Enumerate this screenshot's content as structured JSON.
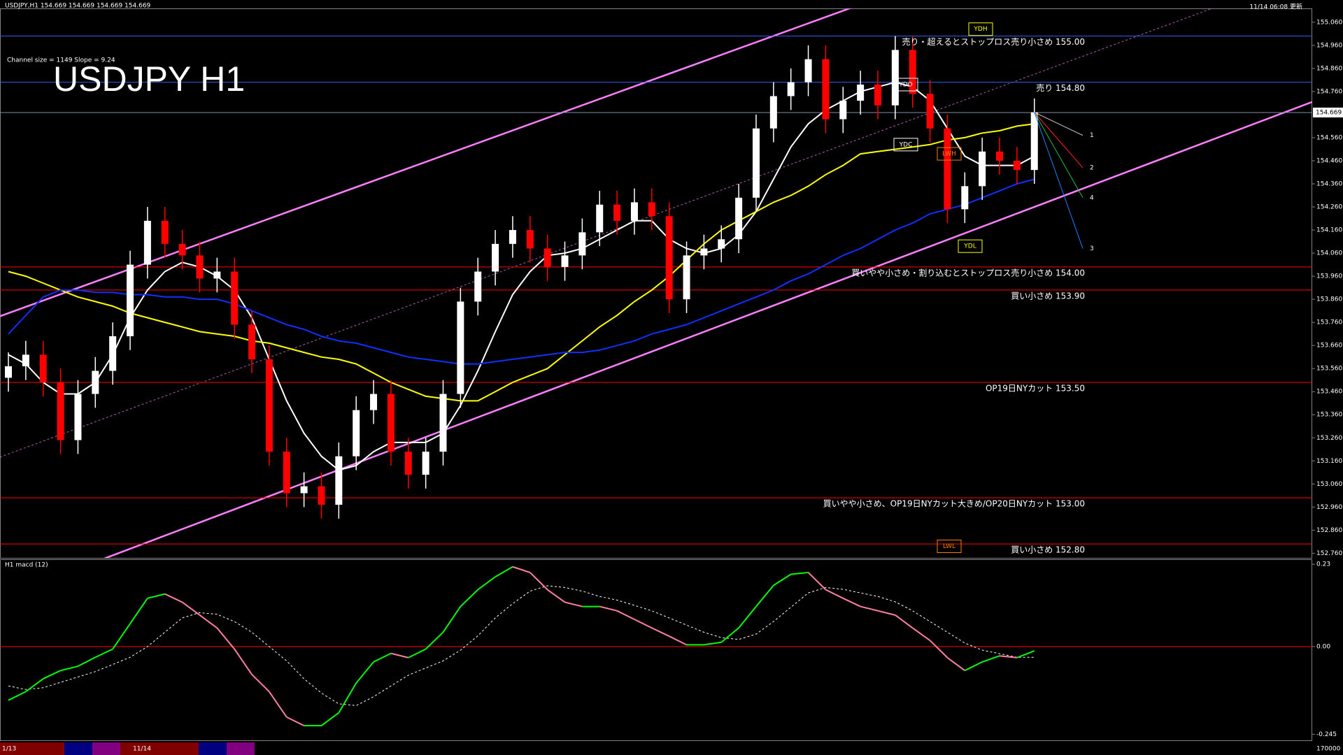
{
  "header": "USDJPY,H1  154.669 154.669 154.669 154.669",
  "updated": "11/14 06:08 更新",
  "chart_data": [
    {
      "type": "candlestick",
      "title": "USDJPY H1",
      "subtitle": "Channel size = 1149 Slope = 9.24",
      "open": [
        153.52,
        153.57,
        153.62,
        153.5,
        153.25,
        153.45,
        153.55,
        153.7,
        154.01,
        154.2,
        154.1,
        154.05,
        153.95,
        153.98,
        153.75,
        153.6,
        153.2,
        153.02,
        153.05,
        152.97,
        153.18,
        153.38,
        153.45,
        153.2,
        153.1,
        153.2,
        153.45,
        153.85,
        153.98,
        154.1,
        154.16,
        154.08,
        154.0,
        154.05,
        154.15,
        154.27,
        154.2,
        154.28,
        154.22,
        153.86,
        154.05,
        154.08,
        154.12,
        154.3,
        154.6,
        154.74,
        154.8,
        154.9,
        154.64,
        154.72,
        154.79,
        154.7,
        154.94,
        154.75,
        154.6,
        154.25,
        154.35,
        154.5,
        154.46,
        154.42
      ],
      "high": [
        153.63,
        153.68,
        153.68,
        153.56,
        153.51,
        153.61,
        153.76,
        154.07,
        154.26,
        154.26,
        154.16,
        154.11,
        154.04,
        154.04,
        153.81,
        153.66,
        153.26,
        153.11,
        153.11,
        153.24,
        153.44,
        153.51,
        153.51,
        153.26,
        153.26,
        153.51,
        153.91,
        154.04,
        154.16,
        154.22,
        154.22,
        154.14,
        154.11,
        154.21,
        154.33,
        154.33,
        154.34,
        154.34,
        154.28,
        154.11,
        154.14,
        154.18,
        154.36,
        154.66,
        154.8,
        154.86,
        154.96,
        154.96,
        154.78,
        154.85,
        154.85,
        155.0,
        155.0,
        154.81,
        154.66,
        154.41,
        154.56,
        154.56,
        154.52,
        154.73
      ],
      "low": [
        153.46,
        153.51,
        153.44,
        153.19,
        153.19,
        153.39,
        153.49,
        153.64,
        153.95,
        154.04,
        153.99,
        153.89,
        153.89,
        153.69,
        153.54,
        153.14,
        152.96,
        152.96,
        152.91,
        152.91,
        153.12,
        153.32,
        153.14,
        153.04,
        153.04,
        153.14,
        153.39,
        153.79,
        153.92,
        154.04,
        154.02,
        153.94,
        153.94,
        153.99,
        154.09,
        154.14,
        154.14,
        154.16,
        153.8,
        153.8,
        153.99,
        154.02,
        154.06,
        154.24,
        154.54,
        154.68,
        154.74,
        154.58,
        154.58,
        154.66,
        154.64,
        154.64,
        154.69,
        154.54,
        154.19,
        154.19,
        154.29,
        154.4,
        154.36,
        154.36
      ],
      "close": [
        153.57,
        153.62,
        153.5,
        153.25,
        153.45,
        153.55,
        153.7,
        154.01,
        154.2,
        154.1,
        154.05,
        153.95,
        153.98,
        153.75,
        153.6,
        153.2,
        153.02,
        153.05,
        152.97,
        153.18,
        153.38,
        153.45,
        153.2,
        153.1,
        153.2,
        153.45,
        153.85,
        153.98,
        154.1,
        154.16,
        154.08,
        154.0,
        154.05,
        154.15,
        154.27,
        154.2,
        154.28,
        154.22,
        153.86,
        154.05,
        154.08,
        154.12,
        154.3,
        154.6,
        154.74,
        154.8,
        154.9,
        154.64,
        154.72,
        154.79,
        154.7,
        154.94,
        154.75,
        154.6,
        154.25,
        154.35,
        154.5,
        154.46,
        154.42,
        154.67
      ],
      "up_color": "#ffffff",
      "down_color": "#ff0000",
      "ylim": [
        152.74,
        155.12
      ],
      "yticks": [
        {
          "value": 152.76,
          "label": "152.760"
        },
        {
          "value": 152.86,
          "label": "152.860"
        },
        {
          "value": 152.96,
          "label": "152.960"
        },
        {
          "value": 153.06,
          "label": "153.060"
        },
        {
          "value": 153.16,
          "label": "153.160"
        },
        {
          "value": 153.26,
          "label": "153.260"
        },
        {
          "value": 153.36,
          "label": "153.360"
        },
        {
          "value": 153.46,
          "label": "153.460"
        },
        {
          "value": 153.56,
          "label": "153.560"
        },
        {
          "value": 153.66,
          "label": "153.660"
        },
        {
          "value": 153.76,
          "label": "153.760"
        },
        {
          "value": 153.86,
          "label": "153.860"
        },
        {
          "value": 153.96,
          "label": "153.960"
        },
        {
          "value": 154.06,
          "label": "154.060"
        },
        {
          "value": 154.16,
          "label": "154.160"
        },
        {
          "value": 154.26,
          "label": "154.260"
        },
        {
          "value": 154.36,
          "label": "154.360"
        },
        {
          "value": 154.46,
          "label": "154.460"
        },
        {
          "value": 154.56,
          "label": "154.560"
        },
        {
          "value": 154.76,
          "label": "154.760"
        },
        {
          "value": 154.86,
          "label": "154.860"
        },
        {
          "value": 154.96,
          "label": "154.960"
        },
        {
          "value": 155.06,
          "label": "155.060"
        }
      ],
      "last_price": {
        "value": 154.669,
        "label": "154.669",
        "color": "#8090b0"
      },
      "moving_averages": [
        {
          "color": "#ffffff",
          "values": [
            153.62,
            153.58,
            153.5,
            153.45,
            153.45,
            153.5,
            153.62,
            153.78,
            153.9,
            153.98,
            154.02,
            154.0,
            153.96,
            153.9,
            153.78,
            153.6,
            153.42,
            153.28,
            153.18,
            153.12,
            153.14,
            153.2,
            153.24,
            153.24,
            153.24,
            153.28,
            153.4,
            153.55,
            153.72,
            153.88,
            153.98,
            154.05,
            154.06,
            154.08,
            154.12,
            154.16,
            154.2,
            154.2,
            154.12,
            154.08,
            154.06,
            154.08,
            154.14,
            154.24,
            154.38,
            154.52,
            154.62,
            154.68,
            154.72,
            154.76,
            154.78,
            154.8,
            154.78,
            154.72,
            154.6,
            154.48,
            154.44,
            154.44,
            154.44,
            154.48
          ]
        },
        {
          "color": "#ffff00",
          "values": [
            153.98,
            153.96,
            153.93,
            153.9,
            153.87,
            153.85,
            153.83,
            153.8,
            153.78,
            153.76,
            153.74,
            153.72,
            153.71,
            153.7,
            153.68,
            153.67,
            153.65,
            153.63,
            153.61,
            153.6,
            153.58,
            153.54,
            153.5,
            153.47,
            153.44,
            153.43,
            153.42,
            153.42,
            153.46,
            153.5,
            153.53,
            153.56,
            153.62,
            153.68,
            153.74,
            153.79,
            153.85,
            153.9,
            153.96,
            154.03,
            154.1,
            154.16,
            154.2,
            154.24,
            154.28,
            154.31,
            154.35,
            154.4,
            154.44,
            154.49,
            154.5,
            154.51,
            154.52,
            154.53,
            154.55,
            154.56,
            154.58,
            154.59,
            154.61,
            154.62
          ]
        },
        {
          "color": "#1030ff",
          "values": [
            153.71,
            153.79,
            153.87,
            153.9,
            153.9,
            153.89,
            153.89,
            153.88,
            153.88,
            153.87,
            153.87,
            153.86,
            153.86,
            153.84,
            153.81,
            153.78,
            153.75,
            153.73,
            153.7,
            153.68,
            153.67,
            153.65,
            153.63,
            153.61,
            153.6,
            153.59,
            153.58,
            153.58,
            153.59,
            153.6,
            153.61,
            153.62,
            153.63,
            153.63,
            153.64,
            153.66,
            153.68,
            153.71,
            153.73,
            153.75,
            153.78,
            153.81,
            153.84,
            153.87,
            153.9,
            153.94,
            153.97,
            154.01,
            154.05,
            154.08,
            154.12,
            154.16,
            154.19,
            154.23,
            154.25,
            154.27,
            154.3,
            154.33,
            154.36,
            154.38
          ]
        }
      ],
      "channel": {
        "color": "#ff80ff",
        "upper": [
          153.8,
          155.41
        ],
        "lower": [
          152.58,
          154.26
        ]
      },
      "levels": [
        {
          "value": 155.0,
          "label": "売り・超えるとストップロス売り小さめ 155.00",
          "color": "#2f5fff"
        },
        {
          "value": 154.8,
          "label": "売り 154.80",
          "color": "#2f5fff"
        },
        {
          "value": 154.0,
          "label": "買いやや小さめ・割り込むとストップロス売り小さめ 154.00",
          "color": "#ff0000"
        },
        {
          "value": 153.9,
          "label": "買い小さめ 153.90",
          "color": "#ff0000"
        },
        {
          "value": 153.5,
          "label": "OP19日NYカット 153.50",
          "color": "#ff0000"
        },
        {
          "value": 153.0,
          "label": "買いやや小さめ、OP19日NYカット大きめ/OP20日NYカット 153.00",
          "color": "#ff0000"
        },
        {
          "value": 152.8,
          "label": "買い小さめ 152.80",
          "color": "#ff0000"
        }
      ],
      "markers": [
        {
          "label": "YDH",
          "value": 155.03,
          "color": "#ffff00"
        },
        {
          "label": "YDO",
          "value": 154.79,
          "color": "#ffffff"
        },
        {
          "label": "YDC",
          "value": 154.53,
          "color": "#ffffff"
        },
        {
          "label": "YDL",
          "value": 154.09,
          "color": "#ffff00"
        },
        {
          "label": "LWH",
          "value": 154.49,
          "color": "#ff8000"
        },
        {
          "label": "LWL",
          "value": 152.79,
          "color": "#ff8000"
        }
      ],
      "fan": [
        {
          "label": "1",
          "value": 154.57,
          "color": "#c0c0c0"
        },
        {
          "label": "2",
          "value": 154.43,
          "color": "#ff2020"
        },
        {
          "label": "4",
          "value": 154.3,
          "color": "#20c040"
        },
        {
          "label": "3",
          "value": 154.08,
          "color": "#2080ff"
        }
      ],
      "x_labels": [
        "1/13",
        "11/14"
      ]
    },
    {
      "type": "macd",
      "title": "H1  macd (12)",
      "series": [
        {
          "up_color": "#00ff00",
          "down_color": "#ff80a0",
          "values": [
            -0.15,
            -0.126,
            -0.09,
            -0.067,
            -0.055,
            -0.03,
            -0.007,
            0.064,
            0.135,
            0.147,
            0.124,
            0.088,
            0.052,
            -0.007,
            -0.078,
            -0.126,
            -0.197,
            -0.221,
            -0.221,
            -0.185,
            -0.102,
            -0.043,
            -0.019,
            -0.031,
            -0.007,
            0.04,
            0.112,
            0.159,
            0.195,
            0.223,
            0.207,
            0.159,
            0.124,
            0.112,
            0.112,
            0.1,
            0.076,
            0.052,
            0.029,
            0.005,
            0.005,
            0.012,
            0.052,
            0.112,
            0.171,
            0.202,
            0.207,
            0.159,
            0.135,
            0.112,
            0.1,
            0.088,
            0.052,
            0.017,
            -0.031,
            -0.067,
            -0.043,
            -0.026,
            -0.031,
            -0.012
          ]
        },
        {
          "color": "#ffffff",
          "values": [
            -0.11,
            -0.12,
            -0.115,
            -0.1,
            -0.085,
            -0.07,
            -0.05,
            -0.03,
            0.0,
            0.04,
            0.08,
            0.095,
            0.09,
            0.07,
            0.04,
            0.0,
            -0.04,
            -0.09,
            -0.13,
            -0.16,
            -0.165,
            -0.14,
            -0.11,
            -0.08,
            -0.06,
            -0.04,
            -0.01,
            0.03,
            0.08,
            0.12,
            0.155,
            0.17,
            0.165,
            0.155,
            0.14,
            0.13,
            0.115,
            0.1,
            0.08,
            0.06,
            0.04,
            0.025,
            0.02,
            0.035,
            0.07,
            0.11,
            0.15,
            0.165,
            0.16,
            0.15,
            0.14,
            0.125,
            0.1,
            0.07,
            0.04,
            0.01,
            -0.01,
            -0.02,
            -0.03,
            -0.03
          ]
        }
      ],
      "ylim": [
        -0.262,
        0.244
      ],
      "yticks": [
        0.23,
        {
          "value": 0,
          "label": "0.00"
        },
        -0.245
      ],
      "zero_line_color": "#ff0000",
      "volume_label": "170000"
    }
  ]
}
